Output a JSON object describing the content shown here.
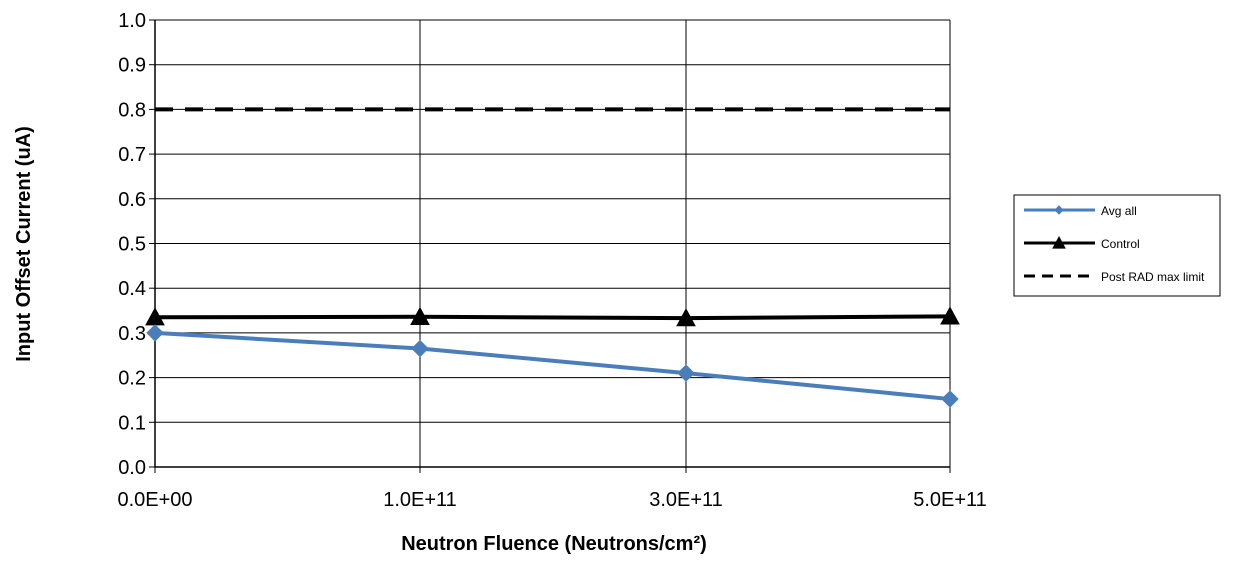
{
  "chart_data": {
    "type": "line",
    "title": "",
    "xlabel": "Neutron Fluence (Neutrons/cm²)",
    "ylabel": "Input Offset Current (uA)",
    "categories": [
      "0.0E+00",
      "1.0E+11",
      "3.0E+11",
      "5.0E+11"
    ],
    "ylim": [
      0,
      1.0
    ],
    "yticks": [
      "0.0",
      "0.1",
      "0.2",
      "0.3",
      "0.4",
      "0.5",
      "0.6",
      "0.7",
      "0.8",
      "0.9",
      "1.0"
    ],
    "grid": true,
    "legend_position": "right",
    "series": [
      {
        "name": "Avg all",
        "values": [
          0.3,
          0.265,
          0.21,
          0.152
        ],
        "color": "#4a7ebb",
        "marker": "diamond",
        "line_style": "solid"
      },
      {
        "name": "Control",
        "values": [
          0.335,
          0.336,
          0.333,
          0.337
        ],
        "color": "#000000",
        "marker": "triangle",
        "line_style": "solid"
      },
      {
        "name": "Post RAD max limit",
        "values": [
          0.8,
          0.8,
          0.8,
          0.8
        ],
        "color": "#000000",
        "marker": "none",
        "line_style": "dashed"
      }
    ]
  }
}
